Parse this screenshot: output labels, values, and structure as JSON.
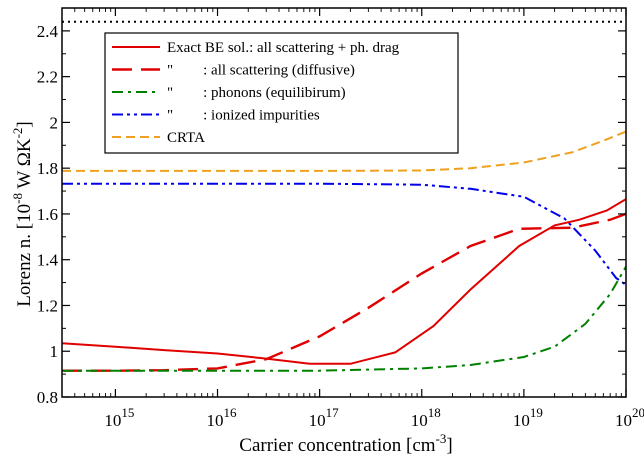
{
  "chart_data": {
    "type": "line",
    "xlabel": "Carrier concentration [cm",
    "xlabel_sup": "-3",
    "xlabel_end": "]",
    "ylabel": "Lorenz n. [10",
    "ylabel_sup1": "-8",
    "ylabel_mid": " W ΩK",
    "ylabel_sup2": "-2",
    "ylabel_end": "]",
    "x_scale": "log",
    "xlim": [
      300000000000000.0,
      1e+20
    ],
    "ylim": [
      0.8,
      2.5
    ],
    "x_ticks": [
      {
        "value": 1000000000000000.0,
        "base": "10",
        "exp": "15"
      },
      {
        "value": 1e+16,
        "base": "10",
        "exp": "16"
      },
      {
        "value": 1e+17,
        "base": "10",
        "exp": "17"
      },
      {
        "value": 1e+18,
        "base": "10",
        "exp": "18"
      },
      {
        "value": 1e+19,
        "base": "10",
        "exp": "19"
      },
      {
        "value": 1e+20,
        "base": "10",
        "exp": "20"
      }
    ],
    "y_ticks": [
      {
        "value": 0.8,
        "label": "0.8"
      },
      {
        "value": 1.0,
        "label": "1"
      },
      {
        "value": 1.2,
        "label": "1.2"
      },
      {
        "value": 1.4,
        "label": "1.4"
      },
      {
        "value": 1.6,
        "label": "1.6"
      },
      {
        "value": 1.8,
        "label": "1.8"
      },
      {
        "value": 2.0,
        "label": "2"
      },
      {
        "value": 2.2,
        "label": "2.2"
      },
      {
        "value": 2.4,
        "label": "2.4"
      }
    ],
    "reference_line": {
      "y": 2.44,
      "color": "#000000"
    },
    "legend_position": "top-left",
    "series": [
      {
        "name": "Exact BE sol.: all scattering + ph. drag",
        "color": "#e00000",
        "dash": "solid",
        "points": [
          [
            300000000000000.0,
            1.035
          ],
          [
            1000000000000000.0,
            1.02
          ],
          [
            3000000000000000.0,
            1.005
          ],
          [
            1e+16,
            0.99
          ],
          [
            3e+16,
            0.968
          ],
          [
            8e+16,
            0.945
          ],
          [
            2e+17,
            0.945
          ],
          [
            5.5e+17,
            0.995
          ],
          [
            1.3e+18,
            1.11
          ],
          [
            3e+18,
            1.27
          ],
          [
            9e+18,
            1.46
          ],
          [
            2e+19,
            1.55
          ],
          [
            3.5e+19,
            1.575
          ],
          [
            6.5e+19,
            1.615
          ],
          [
            1e+20,
            1.665
          ]
        ]
      },
      {
        "name": "\"        : all scattering (diffusive)",
        "color": "#e00000",
        "dash": "long",
        "points": [
          [
            300000000000000.0,
            0.915
          ],
          [
            1000000000000000.0,
            0.915
          ],
          [
            3000000000000000.0,
            0.917
          ],
          [
            1e+16,
            0.925
          ],
          [
            3e+16,
            0.965
          ],
          [
            1e+17,
            1.065
          ],
          [
            3e+17,
            1.19
          ],
          [
            1e+18,
            1.34
          ],
          [
            3e+18,
            1.46
          ],
          [
            9e+18,
            1.535
          ],
          [
            3e+19,
            1.54
          ],
          [
            7e+19,
            1.575
          ],
          [
            1e+20,
            1.6
          ]
        ]
      },
      {
        "name": "\"        : phonons (equilibirum)",
        "color": "#008000",
        "dash": "dashdot",
        "points": [
          [
            300000000000000.0,
            0.915
          ],
          [
            1e+16,
            0.915
          ],
          [
            1e+17,
            0.915
          ],
          [
            1e+18,
            0.925
          ],
          [
            3e+18,
            0.94
          ],
          [
            1e+19,
            0.975
          ],
          [
            2e+19,
            1.02
          ],
          [
            4e+19,
            1.12
          ],
          [
            7e+19,
            1.25
          ],
          [
            1e+20,
            1.37
          ]
        ]
      },
      {
        "name": "\"        : ionized impurities",
        "color": "#0000ee",
        "dash": "dashdotdot",
        "points": [
          [
            300000000000000.0,
            1.732
          ],
          [
            1e+16,
            1.732
          ],
          [
            1e+17,
            1.732
          ],
          [
            1e+18,
            1.728
          ],
          [
            3e+18,
            1.71
          ],
          [
            1e+19,
            1.675
          ],
          [
            2.5e+19,
            1.58
          ],
          [
            5e+19,
            1.44
          ],
          [
            8e+19,
            1.32
          ],
          [
            1e+20,
            1.29
          ]
        ]
      },
      {
        "name": "CRTA",
        "color": "#f0a020",
        "dash": "dashed",
        "points": [
          [
            300000000000000.0,
            1.788
          ],
          [
            1e+16,
            1.788
          ],
          [
            1e+17,
            1.788
          ],
          [
            1e+18,
            1.79
          ],
          [
            3e+18,
            1.8
          ],
          [
            1e+19,
            1.825
          ],
          [
            3e+19,
            1.87
          ],
          [
            6e+19,
            1.92
          ],
          [
            1e+20,
            1.96
          ]
        ]
      }
    ]
  }
}
